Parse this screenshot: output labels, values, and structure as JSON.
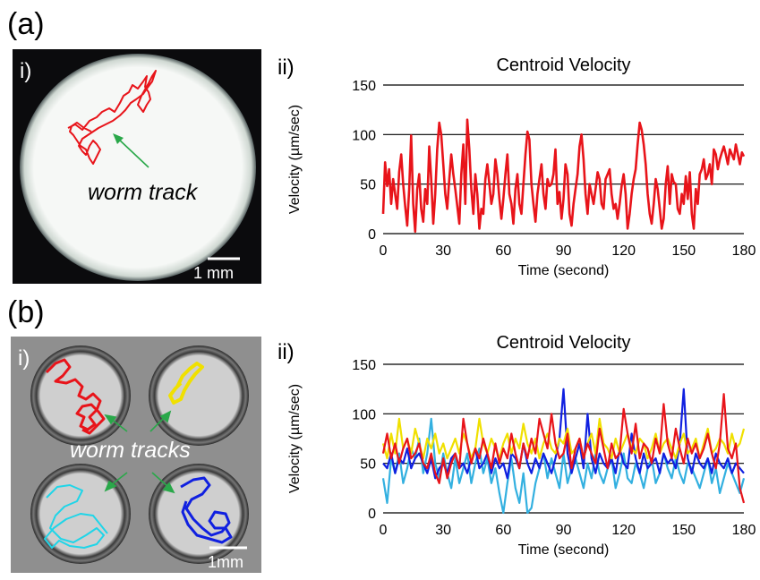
{
  "panels": {
    "a": {
      "letter": "(a)",
      "photo": {
        "sub_label": "i)",
        "annotation": "worm track",
        "scale_bar_label": "1 mm",
        "track_color": "#e8141a",
        "annotation_arrow_color": "#2aa84a"
      }
    },
    "b": {
      "letter": "(b)",
      "photo": {
        "sub_label": "i)",
        "annotation": "worm tracks",
        "scale_bar_label": "1mm",
        "track_colors": [
          "#e8141a",
          "#f0e000",
          "#1fd5e8",
          "#1020e0"
        ],
        "annotation_arrow_color": "#2aa84a"
      }
    }
  },
  "chart_data": [
    {
      "type": "line",
      "sub_label": "ii)",
      "title": "Centroid Velocity",
      "xlabel": "Time (second)",
      "ylabel": "Velocity (µm/sec)",
      "xlim": [
        0,
        180
      ],
      "ylim": [
        0,
        150
      ],
      "xticks": [
        "0",
        "30",
        "60",
        "90",
        "120",
        "150",
        "180"
      ],
      "yticks": [
        "0",
        "50",
        "100",
        "150"
      ],
      "grid": "horizontal",
      "series": [
        {
          "color": "#e8141a",
          "x": [
            0,
            1,
            2,
            3,
            4,
            5,
            6,
            7,
            8,
            9,
            10,
            11,
            12,
            13,
            14,
            15,
            16,
            17,
            18,
            19,
            20,
            21,
            22,
            23,
            24,
            25,
            26,
            27,
            28,
            29,
            30,
            31,
            32,
            33,
            34,
            35,
            36,
            37,
            38,
            39,
            40,
            41,
            42,
            43,
            44,
            45,
            46,
            47,
            48,
            49,
            50,
            51,
            52,
            53,
            54,
            55,
            56,
            57,
            58,
            59,
            60,
            61,
            62,
            63,
            64,
            65,
            66,
            67,
            68,
            69,
            70,
            71,
            72,
            73,
            74,
            75,
            76,
            77,
            78,
            79,
            80,
            81,
            82,
            83,
            84,
            85,
            86,
            87,
            88,
            89,
            90,
            91,
            92,
            93,
            94,
            95,
            96,
            97,
            98,
            99,
            100,
            101,
            102,
            103,
            104,
            105,
            106,
            107,
            108,
            109,
            110,
            111,
            112,
            113,
            114,
            115,
            116,
            117,
            118,
            119,
            120,
            121,
            122,
            123,
            124,
            125,
            126,
            127,
            128,
            129,
            130,
            131,
            132,
            133,
            134,
            135,
            136,
            137,
            138,
            139,
            140,
            141,
            142,
            143,
            144,
            145,
            146,
            147,
            148,
            149,
            150,
            151,
            152,
            153,
            154,
            155,
            156,
            157,
            158,
            159,
            160,
            161,
            162,
            163,
            164,
            165,
            166,
            167,
            168,
            169,
            170,
            171,
            172,
            173,
            174,
            175,
            176,
            177,
            178,
            179,
            180
          ],
          "values": [
            20,
            72,
            48,
            65,
            30,
            55,
            40,
            25,
            62,
            80,
            50,
            28,
            8,
            45,
            99,
            30,
            2,
            45,
            60,
            25,
            12,
            45,
            30,
            88,
            55,
            10,
            40,
            85,
            112,
            100,
            70,
            40,
            25,
            55,
            80,
            60,
            45,
            28,
            10,
            60,
            90,
            30,
            115,
            85,
            45,
            20,
            60,
            40,
            5,
            25,
            20,
            55,
            70,
            50,
            30,
            40,
            75,
            60,
            35,
            15,
            35,
            60,
            80,
            40,
            30,
            10,
            45,
            60,
            30,
            20,
            50,
            80,
            103,
            95,
            50,
            30,
            12,
            40,
            55,
            70,
            40,
            25,
            55,
            48,
            50,
            60,
            85,
            30,
            42,
            15,
            35,
            70,
            60,
            20,
            8,
            30,
            45,
            60,
            88,
            100,
            75,
            40,
            20,
            50,
            40,
            30,
            45,
            62,
            55,
            30,
            25,
            55,
            60,
            65,
            40,
            25,
            30,
            15,
            30,
            48,
            60,
            40,
            5,
            20,
            40,
            55,
            65,
            90,
            112,
            105,
            90,
            70,
            40,
            20,
            10,
            30,
            55,
            45,
            25,
            5,
            15,
            50,
            68,
            30,
            60,
            52,
            50,
            25,
            20,
            40,
            30,
            58,
            35,
            62,
            20,
            5,
            45,
            30,
            60,
            65,
            75,
            55,
            60,
            70,
            50,
            85,
            80,
            65,
            75,
            82,
            88,
            80,
            70,
            85,
            80,
            75,
            90,
            80,
            70,
            82,
            78
          ]
        }
      ]
    },
    {
      "type": "line",
      "sub_label": "ii)",
      "title": "Centroid Velocity",
      "xlabel": "Time (second)",
      "ylabel": "Velocity (µm/sec)",
      "xlim": [
        0,
        180
      ],
      "ylim": [
        0,
        150
      ],
      "xticks": [
        "0",
        "30",
        "60",
        "90",
        "120",
        "150",
        "180"
      ],
      "yticks": [
        "0",
        "50",
        "100",
        "150"
      ],
      "grid": "horizontal",
      "series": [
        {
          "color": "#33b0e0",
          "x": [
            0,
            2,
            4,
            6,
            8,
            10,
            12,
            14,
            16,
            18,
            20,
            22,
            24,
            26,
            28,
            30,
            32,
            34,
            36,
            38,
            40,
            42,
            44,
            46,
            48,
            50,
            52,
            54,
            56,
            58,
            60,
            62,
            64,
            66,
            68,
            70,
            72,
            74,
            76,
            78,
            80,
            82,
            84,
            86,
            88,
            90,
            92,
            94,
            96,
            98,
            100,
            102,
            104,
            106,
            108,
            110,
            112,
            114,
            116,
            118,
            120,
            122,
            124,
            126,
            128,
            130,
            132,
            134,
            136,
            138,
            140,
            142,
            144,
            146,
            148,
            150,
            152,
            154,
            156,
            158,
            160,
            162,
            164,
            166,
            168,
            170,
            172,
            174,
            176,
            178,
            180
          ],
          "values": [
            35,
            10,
            55,
            40,
            60,
            30,
            45,
            65,
            55,
            75,
            40,
            60,
            95,
            50,
            35,
            60,
            40,
            25,
            55,
            30,
            45,
            60,
            30,
            50,
            65,
            40,
            55,
            30,
            45,
            20,
            0,
            30,
            55,
            25,
            10,
            40,
            0,
            5,
            30,
            45,
            60,
            35,
            55,
            40,
            25,
            60,
            30,
            45,
            55,
            40,
            25,
            50,
            35,
            60,
            40,
            30,
            45,
            55,
            25,
            40,
            60,
            35,
            30,
            50,
            40,
            25,
            45,
            55,
            30,
            40,
            60,
            45,
            35,
            55,
            40,
            30,
            50,
            45,
            35,
            25,
            40,
            55,
            30,
            45,
            20,
            35,
            50,
            40,
            30,
            20,
            35
          ]
        },
        {
          "color": "#1020e0",
          "x": [
            0,
            2,
            4,
            6,
            8,
            10,
            12,
            14,
            16,
            18,
            20,
            22,
            24,
            26,
            28,
            30,
            32,
            34,
            36,
            38,
            40,
            42,
            44,
            46,
            48,
            50,
            52,
            54,
            56,
            58,
            60,
            62,
            64,
            66,
            68,
            70,
            72,
            74,
            76,
            78,
            80,
            82,
            84,
            86,
            88,
            90,
            92,
            94,
            96,
            98,
            100,
            102,
            104,
            106,
            108,
            110,
            112,
            114,
            116,
            118,
            120,
            122,
            124,
            126,
            128,
            130,
            132,
            134,
            136,
            138,
            140,
            142,
            144,
            146,
            148,
            150,
            152,
            154,
            156,
            158,
            160,
            162,
            164,
            166,
            168,
            170,
            172,
            174,
            176,
            178,
            180
          ],
          "values": [
            50,
            45,
            60,
            40,
            55,
            50,
            65,
            45,
            55,
            60,
            50,
            40,
            55,
            35,
            45,
            50,
            40,
            55,
            60,
            45,
            50,
            40,
            55,
            65,
            45,
            50,
            60,
            40,
            55,
            45,
            50,
            35,
            60,
            55,
            45,
            70,
            50,
            40,
            55,
            45,
            60,
            50,
            40,
            55,
            75,
            125,
            60,
            40,
            55,
            70,
            45,
            100,
            55,
            40,
            60,
            50,
            45,
            55,
            40,
            65,
            50,
            45,
            80,
            55,
            40,
            60,
            45,
            50,
            55,
            40,
            60,
            50,
            55,
            45,
            70,
            125,
            55,
            40,
            60,
            50,
            45,
            55,
            40,
            60,
            50,
            45,
            55,
            40,
            50,
            45,
            40
          ]
        },
        {
          "color": "#f0e000",
          "x": [
            0,
            2,
            4,
            6,
            8,
            10,
            12,
            14,
            16,
            18,
            20,
            22,
            24,
            26,
            28,
            30,
            32,
            34,
            36,
            38,
            40,
            42,
            44,
            46,
            48,
            50,
            52,
            54,
            56,
            58,
            60,
            62,
            64,
            66,
            68,
            70,
            72,
            74,
            76,
            78,
            80,
            82,
            84,
            86,
            88,
            90,
            92,
            94,
            96,
            98,
            100,
            102,
            104,
            106,
            108,
            110,
            112,
            114,
            116,
            118,
            120,
            122,
            124,
            126,
            128,
            130,
            132,
            134,
            136,
            138,
            140,
            142,
            144,
            146,
            148,
            150,
            152,
            154,
            156,
            158,
            160,
            162,
            164,
            166,
            168,
            170,
            172,
            174,
            176,
            178,
            180
          ],
          "values": [
            70,
            55,
            80,
            60,
            95,
            65,
            75,
            60,
            85,
            70,
            55,
            75,
            65,
            80,
            60,
            70,
            55,
            65,
            75,
            60,
            80,
            70,
            55,
            65,
            95,
            70,
            60,
            75,
            65,
            55,
            70,
            80,
            60,
            75,
            65,
            90,
            70,
            60,
            75,
            55,
            70,
            80,
            65,
            60,
            75,
            70,
            85,
            60,
            65,
            75,
            55,
            70,
            80,
            60,
            95,
            70,
            65,
            55,
            75,
            60,
            70,
            80,
            65,
            60,
            75,
            70,
            55,
            65,
            80,
            60,
            70,
            75,
            65,
            55,
            70,
            80,
            60,
            65,
            75,
            55,
            70,
            85,
            60,
            65,
            75,
            70,
            60,
            80,
            65,
            70,
            85
          ]
        },
        {
          "color": "#e8141a",
          "x": [
            0,
            2,
            4,
            6,
            8,
            10,
            12,
            14,
            16,
            18,
            20,
            22,
            24,
            26,
            28,
            30,
            32,
            34,
            36,
            38,
            40,
            42,
            44,
            46,
            48,
            50,
            52,
            54,
            56,
            58,
            60,
            62,
            64,
            66,
            68,
            70,
            72,
            74,
            76,
            78,
            80,
            82,
            84,
            86,
            88,
            90,
            92,
            94,
            96,
            98,
            100,
            102,
            104,
            106,
            108,
            110,
            112,
            114,
            116,
            118,
            120,
            122,
            124,
            126,
            128,
            130,
            132,
            134,
            136,
            138,
            140,
            142,
            144,
            146,
            148,
            150,
            152,
            154,
            156,
            158,
            160,
            162,
            164,
            166,
            168,
            170,
            172,
            174,
            176,
            178,
            180
          ],
          "values": [
            60,
            80,
            55,
            70,
            50,
            65,
            75,
            55,
            60,
            70,
            50,
            45,
            60,
            40,
            30,
            55,
            35,
            50,
            60,
            45,
            95,
            70,
            50,
            65,
            55,
            75,
            60,
            45,
            70,
            50,
            65,
            55,
            80,
            60,
            45,
            70,
            55,
            75,
            60,
            95,
            80,
            65,
            100,
            70,
            55,
            60,
            80,
            45,
            65,
            75,
            55,
            70,
            60,
            50,
            85,
            65,
            45,
            70,
            55,
            60,
            105,
            80,
            60,
            90,
            55,
            70,
            65,
            50,
            75,
            60,
            110,
            70,
            55,
            85,
            65,
            50,
            75,
            60,
            70,
            55,
            65,
            80,
            60,
            45,
            70,
            120,
            65,
            55,
            70,
            25,
            10
          ]
        }
      ]
    }
  ]
}
